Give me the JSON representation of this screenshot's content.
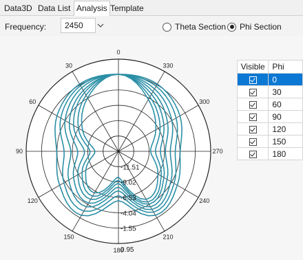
{
  "tabs": [
    "Data3D",
    "Data List",
    "Analysis",
    "Template"
  ],
  "active_tab": 2,
  "frequency": {
    "label": "Frequency:",
    "value": "2450"
  },
  "section_options": [
    {
      "label": "Theta Section",
      "selected": false
    },
    {
      "label": "Phi Section",
      "selected": true
    }
  ],
  "phi_table": {
    "headers": {
      "visible": "Visible",
      "phi": "Phi"
    },
    "rows": [
      {
        "phi": "0",
        "visible": true,
        "selected": true
      },
      {
        "phi": "30",
        "visible": true,
        "selected": false
      },
      {
        "phi": "60",
        "visible": true,
        "selected": false
      },
      {
        "phi": "90",
        "visible": true,
        "selected": false
      },
      {
        "phi": "120",
        "visible": true,
        "selected": false
      },
      {
        "phi": "150",
        "visible": true,
        "selected": false
      },
      {
        "phi": "180",
        "visible": true,
        "selected": false
      }
    ]
  },
  "colors": {
    "trace": "#2b8fa6",
    "selection": "#0b78d4",
    "grid": "#222222"
  },
  "chart_data": {
    "type": "line",
    "polar": true,
    "angle_labels": [
      "0",
      "30",
      "60",
      "90",
      "120",
      "150",
      "180",
      "210",
      "240",
      "270",
      "300",
      "330"
    ],
    "radial_labels": [
      "-11.51",
      "-9.02",
      "-6.53",
      "-4.04",
      "-1.55",
      "0.95"
    ],
    "rlim": [
      -14,
      0.95
    ],
    "series": [
      {
        "values": [
          -1.5,
          -1.4,
          -2.5,
          -4.0,
          -3.0,
          -2.0,
          -6.0,
          -2.0,
          -3.0,
          -4.0,
          -2.5,
          -1.4
        ]
      },
      {
        "values": [
          -1.5,
          -1.7,
          -3.2,
          -5.2,
          -3.8,
          -2.8,
          -6.8,
          -2.6,
          -3.6,
          -4.8,
          -3.2,
          -1.8
        ]
      },
      {
        "values": [
          -1.5,
          -2.1,
          -4.0,
          -6.3,
          -4.7,
          -3.6,
          -7.6,
          -3.1,
          -4.2,
          -5.6,
          -4.0,
          -2.3
        ]
      },
      {
        "values": [
          -1.5,
          -2.6,
          -4.8,
          -7.4,
          -5.6,
          -4.3,
          -8.2,
          -3.6,
          -4.9,
          -6.4,
          -4.8,
          -2.8
        ]
      },
      {
        "values": [
          -1.5,
          -3.0,
          -5.6,
          -8.5,
          -6.4,
          -5.0,
          -8.8,
          -4.1,
          -5.5,
          -7.2,
          -5.5,
          -3.3
        ]
      },
      {
        "values": [
          -1.5,
          -3.5,
          -6.5,
          -9.4,
          -7.2,
          -5.6,
          -9.3,
          -4.5,
          -6.0,
          -8.0,
          -6.2,
          -3.8
        ]
      },
      {
        "values": [
          -1.5,
          -4.0,
          -7.3,
          -10.2,
          -7.9,
          -6.2,
          -9.8,
          -5.0,
          -6.6,
          -8.8,
          -7.0,
          -4.3
        ]
      }
    ]
  }
}
